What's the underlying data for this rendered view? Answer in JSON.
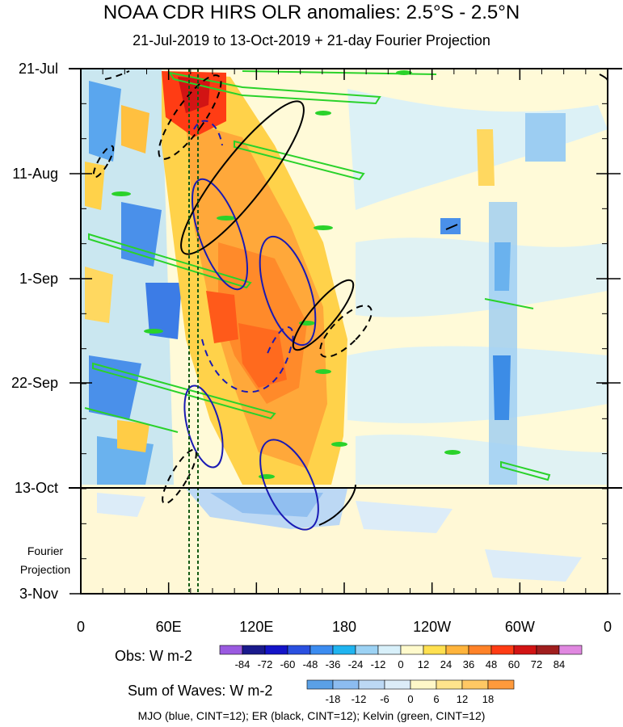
{
  "title": "NOAA CDR HIRS OLR anomalies: 2.5°S - 2.5°N",
  "subtitle": "21-Jul-2019 to 13-Oct-2019 + 21-day Fourier Projection",
  "chart_data": {
    "type": "heatmap",
    "y_ticks": [
      "21-Jul",
      "11-Aug",
      "1-Sep",
      "22-Sep",
      "13-Oct",
      "3-Nov"
    ],
    "x_ticks": [
      "0",
      "60E",
      "120E",
      "180",
      "120W",
      "60W",
      "0"
    ],
    "fourier_label_1": "Fourier",
    "fourier_label_2": "Projection",
    "obs_label": "Obs: W m-2",
    "obs_levels": [
      "-84",
      "-72",
      "-60",
      "-48",
      "-36",
      "-24",
      "-12",
      "0",
      "12",
      "24",
      "36",
      "48",
      "60",
      "72",
      "84"
    ],
    "obs_colors": [
      "#9a5ae0",
      "#1a1a8c",
      "#1414c8",
      "#2a50e0",
      "#3c8cf0",
      "#20b4f0",
      "#9cd2f4",
      "#d8f0fa",
      "#fffacc",
      "#ffe050",
      "#ffb43c",
      "#ff8228",
      "#ff3c14",
      "#d21414",
      "#a01e1e",
      "#e088e0"
    ],
    "waves_label": "Sum of Waves: W m-2",
    "waves_levels": [
      "-18",
      "-12",
      "-6",
      "0",
      "6",
      "12",
      "18"
    ],
    "waves_colors": [
      "#5aa0e6",
      "#8cbcf0",
      "#bcd8f4",
      "#dcecf8",
      "#fff8c8",
      "#ffe48c",
      "#ffc864",
      "#ff9a3c"
    ],
    "contour_legend": "MJO (blue, CINT=12); ER (black, CINT=12); Kelvin (green, CINT=12)",
    "series": [
      {
        "name": "MJO",
        "color": "#1a1ab4"
      },
      {
        "name": "ER",
        "color": "#000000"
      },
      {
        "name": "Kelvin",
        "color": "#2ad22a"
      }
    ]
  }
}
